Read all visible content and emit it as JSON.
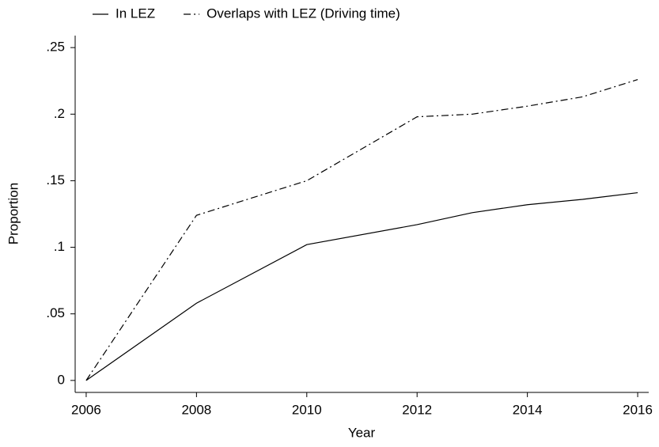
{
  "chart_data": {
    "type": "line",
    "x_label": "Year",
    "y_label": "Proportion",
    "x": [
      2006,
      2008,
      2010,
      2012,
      2013,
      2014,
      2015,
      2016
    ],
    "series": [
      {
        "name": "In LEZ",
        "color": "#000000",
        "style": "solid",
        "values": [
          0,
          0.058,
          0.102,
          0.117,
          0.126,
          0.132,
          0.136,
          0.141
        ]
      },
      {
        "name": "Overlaps with LEZ (Driving time)",
        "color": "#000000",
        "style": "dashdot",
        "values": [
          0,
          0.124,
          0.15,
          0.198,
          0.2,
          0.206,
          0.213,
          0.226
        ]
      }
    ],
    "xlim": [
      2005.8,
      2016.2
    ],
    "xticks": [
      2006,
      2008,
      2010,
      2012,
      2014,
      2016
    ],
    "ylim": [
      -0.009,
      0.259
    ],
    "yticks": [
      0,
      {
        "value": 0.05,
        "label": ".05"
      },
      {
        "value": 0.1,
        "label": ".1"
      },
      {
        "value": 0.15,
        "label": ".15"
      },
      {
        "value": 0.2,
        "label": ".2"
      },
      {
        "value": 0.25,
        "label": ".25"
      }
    ],
    "grid": false,
    "legend": "top"
  }
}
